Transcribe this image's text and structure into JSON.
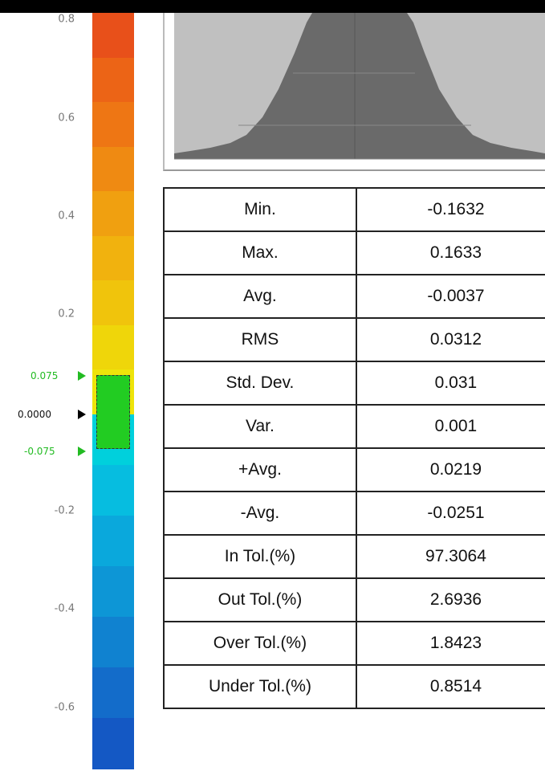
{
  "scale": {
    "ticks": [
      "0.8",
      "0.6",
      "0.4",
      "0.2",
      "-0.2",
      "-0.4",
      "-0.6"
    ],
    "tolerance_upper": "0.075",
    "tolerance_lower": "-0.075",
    "nominal": "0.0000",
    "colors": [
      "#e8501a",
      "#ec6416",
      "#ee7614",
      "#ef8a12",
      "#f0a010",
      "#f1b20e",
      "#f0c40c",
      "#efd60a",
      "#eee40a",
      "#00d0dc",
      "#06bde0",
      "#0aa8dc",
      "#0d96d6",
      "#1082d0",
      "#136cca",
      "#1458c4"
    ]
  },
  "histogram": {
    "colors": {
      "background": "#c0c0c0",
      "fill": "#6a6a6a"
    }
  },
  "stats": {
    "rows": [
      {
        "label": "Min.",
        "value": "-0.1632"
      },
      {
        "label": "Max.",
        "value": "0.1633"
      },
      {
        "label": "Avg.",
        "value": "-0.0037"
      },
      {
        "label": "RMS",
        "value": "0.0312"
      },
      {
        "label": "Std. Dev.",
        "value": "0.031"
      },
      {
        "label": "Var.",
        "value": "0.001"
      },
      {
        "label": "+Avg.",
        "value": "0.0219"
      },
      {
        "label": "-Avg.",
        "value": "-0.0251"
      },
      {
        "label": "In Tol.(%)",
        "value": "97.3064"
      },
      {
        "label": "Out Tol.(%)",
        "value": "2.6936"
      },
      {
        "label": "Over Tol.(%)",
        "value": "1.8423"
      },
      {
        "label": "Under Tol.(%)",
        "value": "0.8514"
      }
    ]
  }
}
